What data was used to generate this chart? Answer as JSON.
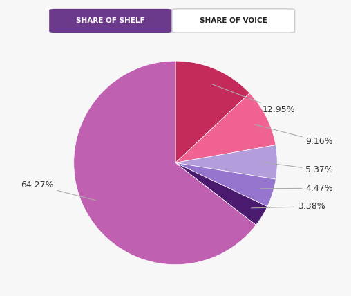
{
  "slices": [
    12.95,
    9.16,
    5.37,
    4.47,
    3.38,
    64.27
  ],
  "labels": [
    "12.95%",
    "9.16%",
    "5.37%",
    "4.47%",
    "3.38%",
    "64.27%"
  ],
  "colors": [
    "#c42b5a",
    "#f06292",
    "#b39ddb",
    "#9575cd",
    "#4a1a6e",
    "#c060b0"
  ],
  "background_color": "#f7f7f7",
  "button1_text": "SHARE OF SHELF",
  "button1_bg": "#6b3a8a",
  "button1_text_color": "#ffffff",
  "button2_text": "SHARE OF VOICE",
  "button2_bg": "#ffffff",
  "button2_text_color": "#222222",
  "label_color": "#333333",
  "label_fontsize": 9,
  "startangle": 90,
  "label_offsets": [
    [
      1.18,
      0.52,
      "right"
    ],
    [
      1.28,
      0.21,
      "left"
    ],
    [
      1.28,
      -0.07,
      "left"
    ],
    [
      1.28,
      -0.25,
      "left"
    ],
    [
      1.2,
      -0.43,
      "left"
    ],
    [
      -1.2,
      -0.22,
      "right"
    ]
  ]
}
